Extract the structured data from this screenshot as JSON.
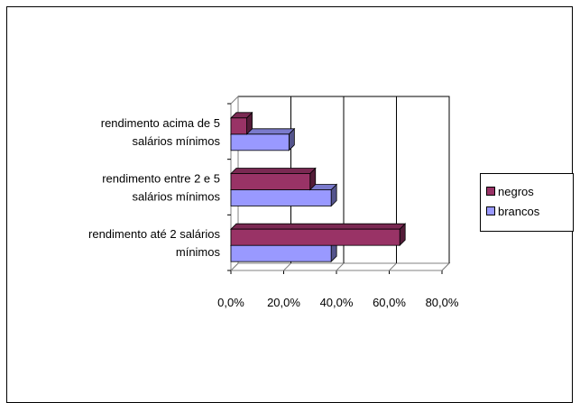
{
  "chart_data": {
    "type": "bar",
    "orientation": "horizontal",
    "style": "3d-clustered",
    "categories": [
      [
        "rendimento até 2 salários",
        "mínimos"
      ],
      [
        "rendimento entre 2 e 5",
        "salários mínimos"
      ],
      [
        "rendimento acima de 5",
        "salários mínimos"
      ]
    ],
    "series": [
      {
        "name": "negros",
        "values": [
          64,
          30,
          6
        ],
        "color": "#993366"
      },
      {
        "name": "brancos",
        "values": [
          38,
          38,
          22
        ],
        "color": "#9999ff"
      }
    ],
    "xlim": [
      0,
      80
    ],
    "xticks": [
      "0,0%",
      "20,0%",
      "40,0%",
      "60,0%",
      "80,0%"
    ],
    "grid": true,
    "legend_position": "right"
  },
  "legend": {
    "items": [
      "negros",
      "brancos"
    ]
  }
}
